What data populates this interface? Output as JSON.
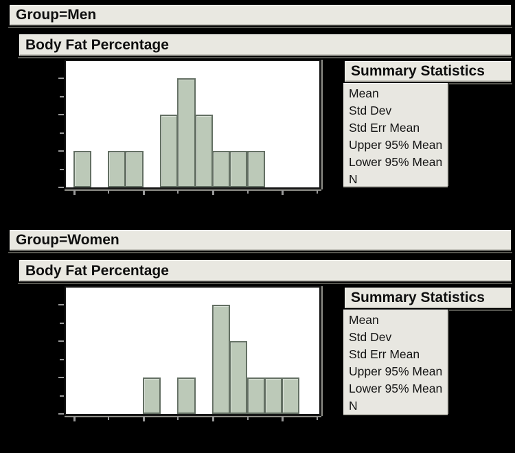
{
  "window": {
    "background": "#000000"
  },
  "colors": {
    "panel_bg": "#e9e8e1",
    "panel_border": "#000000",
    "plot_bg": "#ffffff",
    "bar_fill": "#bcc9b8",
    "bar_border": "#636f63",
    "tick_color": "#9a9a9a",
    "text_color": "#0f0f0f"
  },
  "sections": [
    {
      "group_title": "Group=Men",
      "variable_title": "Body Fat Percentage",
      "summary": {
        "title": "Summary Statistics",
        "rows": [
          "Mean",
          "Std Dev",
          "Std Err Mean",
          "Upper 95% Mean",
          "Lower 95% Mean",
          "N"
        ]
      }
    },
    {
      "group_title": "Group=Women",
      "variable_title": "Body Fat Percentage",
      "summary": {
        "title": "Summary Statistics",
        "rows": [
          "Mean",
          "Std Dev",
          "Std Err Mean",
          "Upper 95% Mean",
          "Lower 95% Mean",
          "N"
        ]
      }
    }
  ],
  "chart_data": [
    {
      "type": "bar",
      "subtype": "histogram",
      "group": "Men",
      "title": "Body Fat Percentage",
      "bin_counts": [
        1,
        0,
        1,
        1,
        0,
        2,
        3,
        2,
        1,
        1,
        1,
        0,
        0,
        0
      ],
      "total_count": 13,
      "y_axis": {
        "min": 0,
        "max": 3.5,
        "tick_step": 0.5,
        "labels_visible": false
      },
      "x_axis": {
        "n_bins": 14,
        "ticks_every_bins": 2,
        "major_every_bins": 4,
        "labels_visible": false
      },
      "grid": false,
      "legend": "none"
    },
    {
      "type": "bar",
      "subtype": "histogram",
      "group": "Women",
      "title": "Body Fat Percentage",
      "bin_counts": [
        0,
        0,
        0,
        0,
        1,
        0,
        1,
        0,
        3,
        2,
        1,
        1,
        1,
        0
      ],
      "total_count": 10,
      "y_axis": {
        "min": 0,
        "max": 3.5,
        "tick_step": 0.5,
        "labels_visible": false
      },
      "x_axis": {
        "n_bins": 14,
        "ticks_every_bins": 2,
        "major_every_bins": 4,
        "labels_visible": false
      },
      "grid": false,
      "legend": "none"
    }
  ]
}
